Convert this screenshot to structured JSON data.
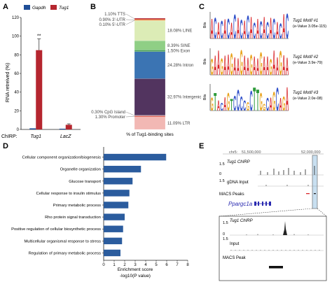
{
  "panels": {
    "A": {
      "letter": "A",
      "chart_data": {
        "type": "bar",
        "categories": [
          "Tug1",
          "LacZ"
        ],
        "series": [
          {
            "name": "Gapdh",
            "values": [
              1.2,
              0.8
            ],
            "errors": [
              0,
              0
            ],
            "color": "#1f4e97"
          },
          {
            "name": "Tug1",
            "values": [
              85,
              5
            ],
            "errors": [
              12,
              1
            ],
            "color": "#b5262f"
          }
        ],
        "ylabel": "RNA retreived (%)",
        "xlabel_prefix": "ChIRP:",
        "yticks": [
          0,
          20,
          40,
          60,
          80,
          100,
          120
        ],
        "ylim": [
          0,
          120
        ],
        "annotation": "**",
        "legend_position": "top"
      }
    },
    "B": {
      "letter": "B",
      "chart_data": {
        "type": "bar",
        "stacked": true,
        "xlabel": "% of Tug1-binding sites",
        "segments": [
          {
            "name": "LTR",
            "value": 11.09,
            "label": "11.09% LTR",
            "color": "#f2b8b4"
          },
          {
            "name": "Promoter",
            "value": 1.3,
            "label": "1.30% Promoter",
            "color": "#e06a5e"
          },
          {
            "name": "CpG Island",
            "value": 0.3,
            "label": "0.30% CpG Island",
            "color": "#7aa6d8"
          },
          {
            "name": "Intergenic",
            "value": 32.97,
            "label": "32.97% Intergenic",
            "color": "#52345f"
          },
          {
            "name": "Intron",
            "value": 24.28,
            "label": "24.28% Intron",
            "color": "#3b74b3"
          },
          {
            "name": "Exon",
            "value": 1.5,
            "label": "1.50% Exon",
            "color": "#4a9f5b"
          },
          {
            "name": "SINE",
            "value": 8.39,
            "label": "8.39% SINE",
            "color": "#8fcf85"
          },
          {
            "name": "LINE",
            "value": 18.08,
            "label": "18.08% LINE",
            "color": "#dcecb6"
          },
          {
            "name": "5'-UTR",
            "value": 0.1,
            "label": "0.10% 5'-UTR",
            "color": "#e79bb5"
          },
          {
            "name": "3'-UTR",
            "value": 0.9,
            "label": "0.90% 3'-UTR",
            "color": "#f07f2a"
          },
          {
            "name": "TTS",
            "value": 1.1,
            "label": "1.10% TTS",
            "color": "#b4232a"
          }
        ]
      }
    },
    "C": {
      "letter": "C",
      "axis_label": "Bits",
      "motifs": [
        {
          "title": "Tug1 Motif #1",
          "evalue": "(e-Value 3.05e-115)"
        },
        {
          "title": "Tug1 Motif #2",
          "evalue": "(e-Value 3.9e-79)"
        },
        {
          "title": "Tug1 Motif #3",
          "evalue": "(e-Value 2.0e-08)"
        }
      ]
    },
    "D": {
      "letter": "D",
      "chart_data": {
        "type": "bar",
        "orientation": "horizontal",
        "categories": [
          "Cellular component organization/biogenesis",
          "Organelle organization",
          "Glucose transport",
          "Cellular response to insulin stimulus",
          "Primary metabolic process",
          "Rho protein signal transduction",
          "Positive regulation of cellular biosynthetic process",
          "Multicellular organismal response to stress",
          "Regulation of primary metabolic process"
        ],
        "values": [
          5.95,
          3.55,
          2.75,
          2.45,
          2.35,
          2.0,
          1.85,
          1.75,
          1.6
        ],
        "xlabel": "Enrichment score",
        "xlabel2": "-log10(P value)",
        "xticks": [
          0,
          1,
          2,
          3,
          4,
          5,
          6,
          7,
          8
        ],
        "xlim": [
          0,
          8
        ],
        "color": "#2b5c9e"
      }
    },
    "E": {
      "letter": "E",
      "coord_left": "chr5:",
      "coord_left2": "51,500,000",
      "coord_right": "52,000,000",
      "track_chirp": "Tug1 ChIRP",
      "track_input": "gDNA Input",
      "track_macs": "MACS Peaks",
      "gene": "Ppargc1a",
      "scale_top": "1.5",
      "scale_bottom": "0",
      "scale_input_top": "1.5",
      "zoom_chirp": "Tug1 ChIRP",
      "zoom_input": "Input",
      "zoom_macs": "MACS Peak",
      "zoom_scale_top": "1.5",
      "zoom_scale_bottom": "0",
      "zoom_scale_input": "1.5"
    }
  }
}
